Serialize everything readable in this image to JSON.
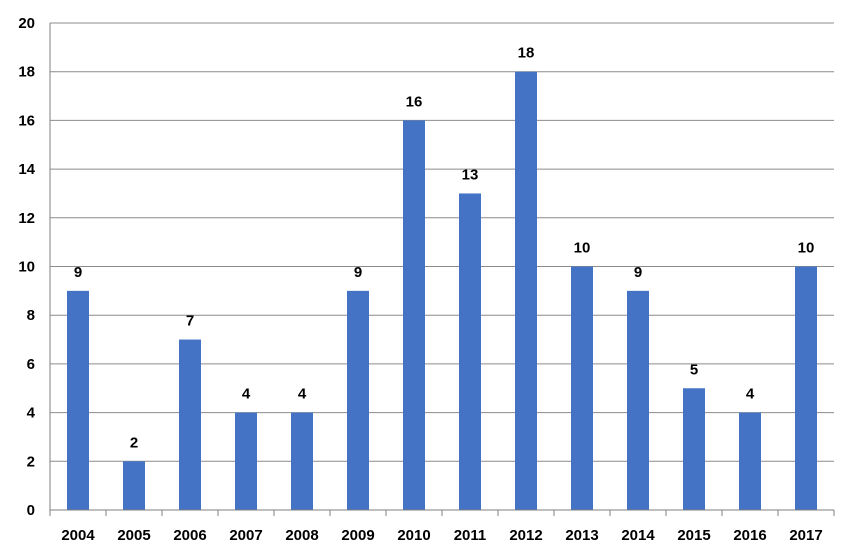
{
  "chart_data": {
    "type": "bar",
    "categories": [
      "2004",
      "2005",
      "2006",
      "2007",
      "2008",
      "2009",
      "2010",
      "2011",
      "2012",
      "2013",
      "2014",
      "2015",
      "2016",
      "2017"
    ],
    "values": [
      9,
      2,
      7,
      4,
      4,
      9,
      16,
      13,
      18,
      10,
      9,
      5,
      4,
      10
    ],
    "title": "",
    "xlabel": "",
    "ylabel": "",
    "ylim": [
      0,
      20
    ],
    "yticks": [
      0,
      2,
      4,
      6,
      8,
      10,
      12,
      14,
      16,
      18,
      20
    ],
    "grid": true,
    "bar_color": "#4472c4",
    "data_labels": true
  }
}
